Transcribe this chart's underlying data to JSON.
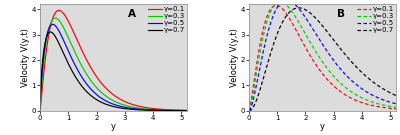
{
  "panel_A": {
    "label": "A",
    "xlabel": "y",
    "ylabel": "Velocity V(y,t)",
    "xlim": [
      0,
      5.2
    ],
    "ylim": [
      0,
      4.2
    ],
    "yticks": [
      0,
      1,
      2,
      3,
      4
    ],
    "xticks": [
      0,
      1,
      2,
      3,
      4,
      5
    ],
    "series": [
      {
        "gamma": 0.1,
        "color": "#ff0000",
        "linestyle": "solid",
        "a": 2.2,
        "b": 1.8,
        "scale": 1.15
      },
      {
        "gamma": 0.3,
        "color": "#00cc00",
        "linestyle": "solid",
        "a": 2.0,
        "b": 1.85,
        "scale": 1.1
      },
      {
        "gamma": 0.5,
        "color": "#0000ff",
        "linestyle": "solid",
        "a": 1.85,
        "b": 1.9,
        "scale": 1.06
      },
      {
        "gamma": 0.7,
        "color": "#000000",
        "linestyle": "solid",
        "a": 1.72,
        "b": 1.95,
        "scale": 1.02
      }
    ]
  },
  "panel_B": {
    "label": "B",
    "xlabel": "y",
    "ylabel": "Velocity V(y,t)",
    "xlim": [
      0,
      5.2
    ],
    "ylim": [
      0,
      4.2
    ],
    "yticks": [
      0,
      1,
      2,
      3,
      4
    ],
    "xticks": [
      0,
      1,
      2,
      3,
      4,
      5
    ],
    "series": [
      {
        "gamma": 0.1,
        "color": "#ff0000",
        "linestyle": "dashed",
        "a": 2.5,
        "b": 1.55,
        "scale": 1.05
      },
      {
        "gamma": 0.3,
        "color": "#00cc00",
        "linestyle": "dashed",
        "a": 2.6,
        "b": 1.45,
        "scale": 1.04
      },
      {
        "gamma": 0.5,
        "color": "#0000ff",
        "linestyle": "dashed",
        "a": 2.8,
        "b": 1.35,
        "scale": 1.02
      },
      {
        "gamma": 0.7,
        "color": "#000000",
        "linestyle": "dashed",
        "a": 3.2,
        "b": 1.25,
        "scale": 0.98
      }
    ]
  },
  "bg_color": "#dcdcdc",
  "legend_fontsize": 5.0,
  "label_fontsize": 6.0,
  "tick_fontsize": 5.0
}
